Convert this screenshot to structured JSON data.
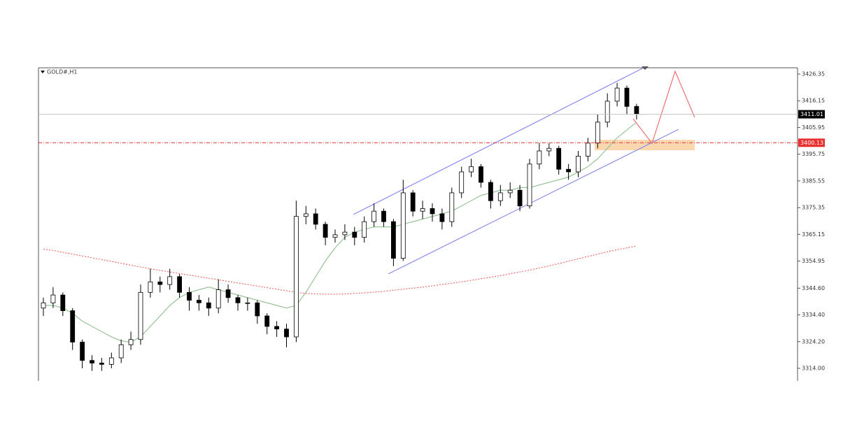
{
  "chart_data": {
    "type": "candlestick",
    "title": "GOLD#,H1",
    "ylim": [
      3309.2,
      3428.75
    ],
    "yticks": [
      3426.35,
      3416.15,
      3405.95,
      3395.75,
      3385.55,
      3375.35,
      3365.15,
      3354.95,
      {
        "value": 3344.6,
        "label": "3344.60"
      },
      {
        "value": 3334.4,
        "label": "3334.40"
      },
      {
        "value": 3324.2,
        "label": "3324.20"
      },
      {
        "value": 3314,
        "label": "3314.00"
      }
    ],
    "up_color": "#ffffff",
    "down_color": "#000000",
    "open": [
      3337,
      3339,
      3342,
      3336,
      3324,
      3317,
      3316,
      3315.5,
      3318,
      3323,
      3325,
      3343,
      3347,
      3346,
      3349,
      3343,
      3340,
      3339,
      3337,
      3344,
      3341,
      3339,
      3339,
      3334,
      3330,
      3329,
      3326,
      3372,
      3373,
      3369,
      3364,
      3365,
      3366,
      3364,
      3370,
      3374,
      3370,
      3356,
      3381,
      3374,
      3375,
      3373,
      3370,
      3381,
      3389,
      3391,
      3385,
      3378,
      3381,
      3382,
      3376,
      3392,
      3397,
      3398,
      3390,
      3389,
      3395,
      3400,
      3408,
      3416,
      3421,
      3414
    ],
    "high": [
      3341,
      3345,
      3343,
      3337,
      3325,
      3319,
      3318,
      3320,
      3325,
      3328,
      3346,
      3352,
      3349,
      3352,
      3350,
      3345,
      3342,
      3341,
      3348,
      3346,
      3342,
      3341,
      3340,
      3335,
      3332,
      3331,
      3378,
      3376,
      3375,
      3370,
      3367,
      3369,
      3368,
      3372,
      3377,
      3375,
      3371,
      3386,
      3382,
      3378,
      3377,
      3375,
      3383,
      3391,
      3394,
      3392,
      3386,
      3384,
      3385,
      3384,
      3394,
      3400,
      3400,
      3399,
      3392,
      3397,
      3402,
      3411,
      3419,
      3423,
      3422,
      3415
    ],
    "low": [
      3334,
      3337,
      3334,
      3321,
      3314,
      3313,
      3313,
      3314,
      3316,
      3321,
      3323,
      3341,
      3343,
      3344,
      3341,
      3336,
      3336,
      3334,
      3335,
      3339,
      3336,
      3336,
      3331,
      3327,
      3326,
      3322,
      3324,
      3369,
      3367,
      3361,
      3362,
      3363,
      3361,
      3362,
      3368,
      3368,
      3353,
      3355,
      3372,
      3371,
      3370,
      3367,
      3368,
      3379,
      3387,
      3383,
      3375,
      3376,
      3379,
      3374,
      3375,
      3390,
      3395,
      3388,
      3386,
      3387,
      3393,
      3398,
      3406,
      3414,
      3411,
      3409
    ],
    "close": [
      3339,
      3342,
      3336,
      3324,
      3317,
      3316,
      3315.5,
      3318,
      3323,
      3325,
      3343,
      3347,
      3346,
      3349,
      3343,
      3340,
      3339,
      3337,
      3344,
      3341,
      3339,
      3339,
      3334,
      3330,
      3329,
      3326,
      3372,
      3373,
      3369,
      3364,
      3365,
      3366,
      3364,
      3370,
      3374,
      3370,
      3356,
      3381,
      3374,
      3375,
      3373,
      3370,
      3381,
      3389,
      3391,
      3385,
      3378,
      3381,
      3382,
      3376,
      3392,
      3397,
      3398,
      3390,
      3389,
      3395,
      3400,
      3408,
      3416,
      3421,
      3414,
      3411
    ],
    "series": [
      {
        "color": "#8fbf8f",
        "style": "solid",
        "values": [
          3338,
          3338,
          3337,
          3335,
          3332,
          3330,
          3328,
          3326,
          3324.5,
          3324,
          3326,
          3330,
          3334,
          3338,
          3341,
          3343,
          3344,
          3345,
          3344,
          3343,
          3342,
          3341,
          3340,
          3339,
          3338,
          3337,
          3338,
          3343,
          3349,
          3355,
          3360,
          3364,
          3366,
          3367,
          3368,
          3368,
          3368,
          3369,
          3370,
          3371,
          3372,
          3373,
          3374,
          3376,
          3378,
          3380,
          3381,
          3382,
          3382,
          3383,
          3383,
          3384,
          3385,
          3386,
          3387,
          3389,
          3391,
          3394,
          3398,
          3402,
          3405,
          3408
        ]
      },
      {
        "color": "#e86060",
        "style": "dotted",
        "values": [
          3359.5,
          3359,
          3358.3,
          3357.6,
          3356.9,
          3356.2,
          3355.5,
          3354.8,
          3354.1,
          3353.4,
          3352.7,
          3352,
          3351.4,
          3350.8,
          3350.2,
          3349.6,
          3349,
          3348.4,
          3347.8,
          3347.2,
          3346.6,
          3346,
          3345.4,
          3344.8,
          3344.2,
          3343.6,
          3343,
          3342.6,
          3342.4,
          3342.3,
          3342.3,
          3342.4,
          3342.6,
          3342.8,
          3343.1,
          3343.4,
          3343.8,
          3344.2,
          3344.6,
          3345,
          3345.5,
          3346,
          3346.5,
          3347,
          3347.6,
          3348.2,
          3348.8,
          3349.4,
          3350.1,
          3350.8,
          3351.5,
          3352.3,
          3353.1,
          3354,
          3354.9,
          3355.8,
          3356.7,
          3357.6,
          3358.5,
          3359.3,
          3360,
          3360.7
        ]
      }
    ],
    "current_price": 3411.01,
    "level": 3400.13,
    "level_color": "#e83030"
  }
}
